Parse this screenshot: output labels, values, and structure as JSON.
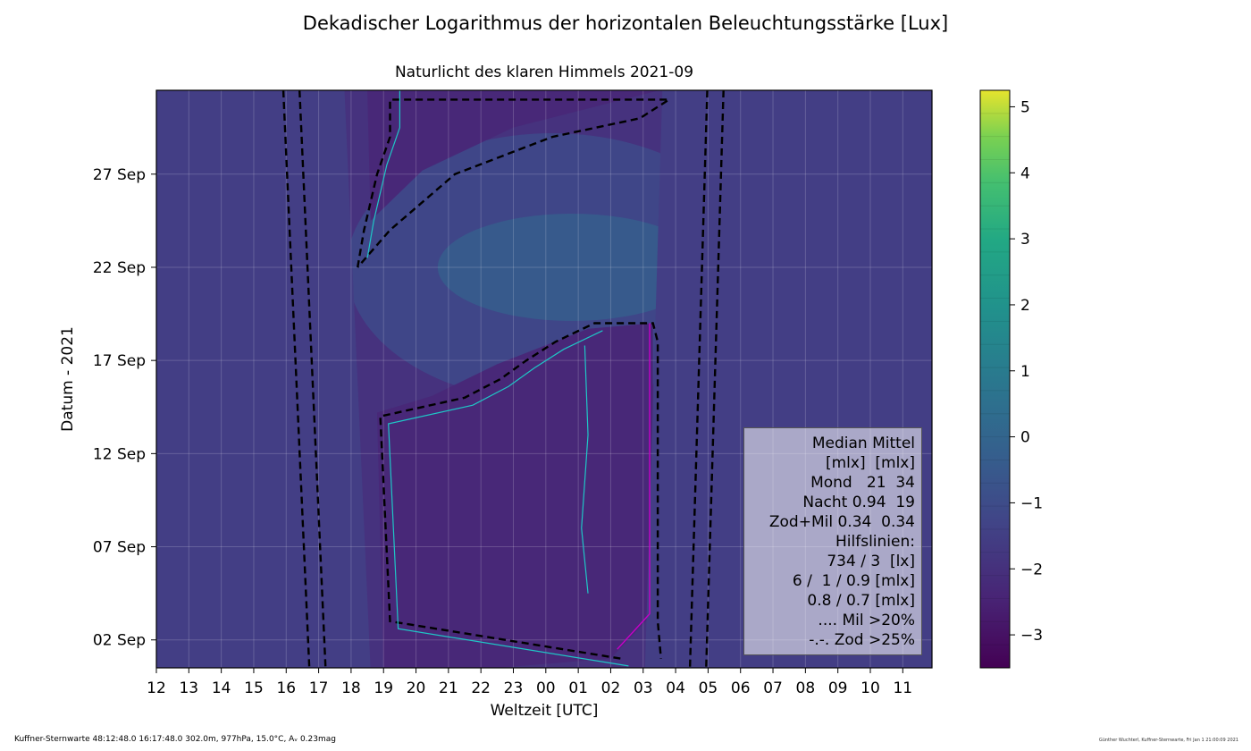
{
  "figure": {
    "suptitle": "Dekadischer Logarithmus der horizontalen Beleuchtungsstärke [Lux]",
    "footer_left": "Kuffner-Sternwarte 48:12:48.0 16:17:48.0 302.0m,  977hPa, 15.0°C, Aᵥ 0.23mag",
    "footer_right": "Günther Wuchterl, Kuffner-Sternwarte, Fri Jan  1 21:00:09 2021"
  },
  "chart_data": {
    "type": "heatmap",
    "title": "Naturlicht des klaren Himmels 2021-09",
    "xlabel": "Weltzeit [UTC]",
    "ylabel": "Datum - 2021",
    "x_ticks": [
      "12",
      "13",
      "14",
      "15",
      "16",
      "17",
      "18",
      "19",
      "20",
      "21",
      "22",
      "23",
      "00",
      "01",
      "02",
      "03",
      "04",
      "05",
      "06",
      "07",
      "08",
      "09",
      "10",
      "11"
    ],
    "x_range_hours": [
      12,
      35.9
    ],
    "y_ticks": [
      "02 Sep",
      "07 Sep",
      "12 Sep",
      "17 Sep",
      "22 Sep",
      "27 Sep"
    ],
    "y_tick_days": [
      2,
      7,
      12,
      17,
      22,
      27
    ],
    "y_range_days": [
      0.5,
      31.5
    ],
    "grid": true,
    "colormap": "viridis",
    "colorbar": {
      "ticks": [
        5,
        4,
        3,
        2,
        1,
        0,
        -1,
        -2,
        -3
      ],
      "tick_labels": [
        "5",
        "4",
        "3",
        "2",
        "1",
        "0",
        "−1",
        "−2",
        "−3"
      ],
      "range": [
        -3.5,
        5.25
      ]
    },
    "sunset_hour_day1": 17.65,
    "sunset_hour_day30": 16.9,
    "sunrise_hour_day1": 28.0,
    "sunrise_hour_day30": 28.5,
    "moon_night": [
      {
        "day": 1,
        "start": 26.3,
        "end": 27.55
      },
      {
        "day": 3,
        "start": 19.2,
        "end": 27.45
      },
      {
        "day": 14,
        "start": 18.9,
        "end": 27.45
      },
      {
        "day": 15,
        "start": 21.5,
        "end": 27.45
      },
      {
        "day": 16,
        "start": 22.6,
        "end": 27.45
      },
      {
        "day": 17,
        "start": 23.4,
        "end": 27.45
      },
      {
        "day": 18,
        "start": 24.3,
        "end": 27.45
      },
      {
        "day": 19,
        "start": 25.5,
        "end": 27.3
      },
      {
        "day": 22,
        "start": 18.2,
        "end": 18.2
      },
      {
        "day": 24,
        "start": 18.4,
        "end": 19.2
      },
      {
        "day": 27,
        "start": 18.8,
        "end": 21.2
      },
      {
        "day": 29,
        "start": 19.2,
        "end": 24.2
      },
      {
        "day": 30,
        "start": 19.2,
        "end": 26.9
      },
      {
        "day": 31,
        "start": 19.2,
        "end": 27.8
      }
    ],
    "legend": {
      "placement": "lower-right",
      "lines": [
        "Median Mittel",
        "[mlx]  [mlx]",
        "Mond   21  34",
        "Nacht 0.94  19",
        "Zod+Mil 0.34  0.34",
        "Hilfslinien:",
        "734 / 3  [lx]",
        "6 /  1 / 0.9 [mlx]",
        "0.8 / 0.7 [mlx]",
        ".... Mil >20%",
        "-.-. Zod >25%"
      ]
    }
  }
}
